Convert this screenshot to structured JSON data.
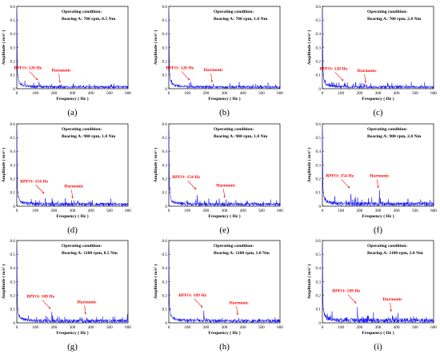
{
  "chart_data": [
    {
      "type": "line",
      "panel_label": "(a)",
      "condition_title": "Operating condition:",
      "condition_detail": "Bearing A: 700 rpm, 0.5 Nm",
      "xlabel": "Frequency ( Hz )",
      "ylabel": "Amplitude ( m/s² )",
      "xlim": [
        0,
        600
      ],
      "ylim": [
        0,
        0.6
      ],
      "xticks": [
        0,
        100,
        200,
        300,
        400,
        500,
        600
      ],
      "yticks": [
        0,
        0.1,
        0.2,
        0.3,
        0.4,
        0.5,
        0.6
      ],
      "noise_level": 0.012,
      "peaks": [
        {
          "x": 120,
          "y": 0.05
        },
        {
          "x": 240,
          "y": 0.032
        },
        {
          "x": 360,
          "y": 0.02
        }
      ],
      "annotations": [
        {
          "text": "BPFO: 120 Hz",
          "x": 120,
          "y": 0.05
        },
        {
          "text": "Harmonic",
          "x": 240,
          "y": 0.032
        }
      ],
      "line_color": "#0000ff",
      "annotation_color": "#ff0000"
    },
    {
      "type": "line",
      "panel_label": "(b)",
      "condition_title": "Operating condition:",
      "condition_detail": "Bearing A: 700 rpm, 1.0 Nm",
      "xlabel": "Frequency ( Hz )",
      "ylabel": "Amplitude ( m/s² )",
      "xlim": [
        0,
        600
      ],
      "ylim": [
        0,
        0.6
      ],
      "xticks": [
        0,
        100,
        200,
        300,
        400,
        500,
        600
      ],
      "yticks": [
        0,
        0.1,
        0.2,
        0.3,
        0.4,
        0.5,
        0.6
      ],
      "noise_level": 0.012,
      "peaks": [
        {
          "x": 120,
          "y": 0.05
        },
        {
          "x": 240,
          "y": 0.035
        },
        {
          "x": 480,
          "y": 0.025
        }
      ],
      "annotations": [
        {
          "text": "BPFO: 120 Hz",
          "x": 120,
          "y": 0.05
        },
        {
          "text": "Harmonic",
          "x": 240,
          "y": 0.035
        }
      ],
      "line_color": "#0000ff",
      "annotation_color": "#ff0000"
    },
    {
      "type": "line",
      "panel_label": "(c)",
      "condition_title": "Operating condition:",
      "condition_detail": "Bearing A: 700 rpm, 2.0 Nm",
      "xlabel": "Frequency ( Hz )",
      "ylabel": "Amplitude ( m/s² )",
      "xlim": [
        0,
        600
      ],
      "ylim": [
        0,
        0.6
      ],
      "xticks": [
        0,
        100,
        200,
        300,
        400,
        500,
        600
      ],
      "yticks": [
        0,
        0.1,
        0.2,
        0.3,
        0.4,
        0.5,
        0.6
      ],
      "noise_level": 0.012,
      "peaks": [
        {
          "x": 120,
          "y": 0.045
        },
        {
          "x": 240,
          "y": 0.03
        },
        {
          "x": 480,
          "y": 0.05
        }
      ],
      "annotations": [
        {
          "text": "BPFO: 120 Hz",
          "x": 120,
          "y": 0.045
        },
        {
          "text": "Harmonic",
          "x": 240,
          "y": 0.03
        }
      ],
      "line_color": "#0000ff",
      "annotation_color": "#ff0000"
    },
    {
      "type": "line",
      "panel_label": "(d)",
      "condition_title": "Operating condition:",
      "condition_detail": "Bearing A: 900 rpm, 1.0 Nm",
      "xlabel": "Frequency ( Hz )",
      "ylabel": "Amplitude ( m/s² )",
      "xlim": [
        0,
        600
      ],
      "ylim": [
        0,
        0.6
      ],
      "xticks": [
        0,
        100,
        200,
        300,
        400,
        500,
        600
      ],
      "yticks": [
        0,
        0.1,
        0.2,
        0.3,
        0.4,
        0.5,
        0.6
      ],
      "noise_level": 0.015,
      "peaks": [
        {
          "x": 154,
          "y": 0.08
        },
        {
          "x": 308,
          "y": 0.045
        },
        {
          "x": 462,
          "y": 0.03
        }
      ],
      "annotations": [
        {
          "text": "BPFO: 154 Hz",
          "x": 154,
          "y": 0.08
        },
        {
          "text": "Harmonic",
          "x": 308,
          "y": 0.045
        }
      ],
      "line_color": "#0000ff",
      "annotation_color": "#ff0000"
    },
    {
      "type": "line",
      "panel_label": "(e)",
      "condition_title": "Operating condition:",
      "condition_detail": "Bearing A: 900 rpm, 1.0 Nm",
      "xlabel": "Frequency ( Hz )",
      "ylabel": "Amplitude ( m/s² )",
      "xlim": [
        0,
        600
      ],
      "ylim": [
        0,
        0.6
      ],
      "xticks": [
        0,
        100,
        200,
        300,
        400,
        500,
        600
      ],
      "yticks": [
        0,
        0.1,
        0.2,
        0.3,
        0.4,
        0.5,
        0.6
      ],
      "noise_level": 0.015,
      "peaks": [
        {
          "x": 154,
          "y": 0.11
        },
        {
          "x": 308,
          "y": 0.05
        },
        {
          "x": 462,
          "y": 0.04
        }
      ],
      "annotations": [
        {
          "text": "BPFO: 154 Hz",
          "x": 154,
          "y": 0.11
        },
        {
          "text": "Harmonic",
          "x": 308,
          "y": 0.05
        }
      ],
      "line_color": "#0000ff",
      "annotation_color": "#ff0000"
    },
    {
      "type": "line",
      "panel_label": "(f)",
      "condition_title": "Operating condition:",
      "condition_detail": "Bearing A: 900 rpm, 2.0 Nm",
      "xlabel": "Frequency ( Hz )",
      "ylabel": "Amplitude ( m/s² )",
      "xlim": [
        0,
        600
      ],
      "ylim": [
        0,
        0.6
      ],
      "xticks": [
        0,
        100,
        200,
        300,
        400,
        500,
        600
      ],
      "yticks": [
        0,
        0.1,
        0.2,
        0.3,
        0.4,
        0.5,
        0.6
      ],
      "noise_level": 0.018,
      "peaks": [
        {
          "x": 154,
          "y": 0.12
        },
        {
          "x": 308,
          "y": 0.12
        },
        {
          "x": 462,
          "y": 0.07
        },
        {
          "x": 530,
          "y": 0.06
        }
      ],
      "annotations": [
        {
          "text": "BPFO: 154 Hz",
          "x": 154,
          "y": 0.12
        },
        {
          "text": "Harmonic",
          "x": 308,
          "y": 0.12
        }
      ],
      "line_color": "#0000ff",
      "annotation_color": "#ff0000"
    },
    {
      "type": "line",
      "panel_label": "(g)",
      "condition_title": "Operating condition:",
      "condition_detail": "Bearing A: 1100 rpm, 0.5 Nm",
      "xlabel": "Frequency ( Hz )",
      "ylabel": "Amplitude ( m/s² )",
      "xlim": [
        0,
        600
      ],
      "ylim": [
        0,
        0.6
      ],
      "xticks": [
        0,
        100,
        200,
        300,
        400,
        500,
        600
      ],
      "yticks": [
        0,
        0.1,
        0.2,
        0.3,
        0.4,
        0.5,
        0.6
      ],
      "noise_level": 0.015,
      "peaks": [
        {
          "x": 189,
          "y": 0.09
        },
        {
          "x": 378,
          "y": 0.05
        }
      ],
      "annotations": [
        {
          "text": "BPFO: 189 Hz",
          "x": 189,
          "y": 0.09
        },
        {
          "text": "Harmonic",
          "x": 378,
          "y": 0.05
        }
      ],
      "line_color": "#0000ff",
      "annotation_color": "#ff0000"
    },
    {
      "type": "line",
      "panel_label": "(h)",
      "condition_title": "Operating condition:",
      "condition_detail": "Bearing A: 1100 rpm, 1.0 Nm",
      "xlabel": "Frequency ( Hz )",
      "ylabel": "Amplitude ( m/s² )",
      "xlim": [
        0,
        600
      ],
      "ylim": [
        0,
        0.6
      ],
      "xticks": [
        0,
        100,
        200,
        300,
        400,
        500,
        600
      ],
      "yticks": [
        0,
        0.1,
        0.2,
        0.3,
        0.4,
        0.5,
        0.6
      ],
      "noise_level": 0.015,
      "peaks": [
        {
          "x": 189,
          "y": 0.1
        },
        {
          "x": 378,
          "y": 0.045
        }
      ],
      "annotations": [
        {
          "text": "BPFO: 189 Hz",
          "x": 189,
          "y": 0.1
        },
        {
          "text": "Harmonic",
          "x": 378,
          "y": 0.045
        }
      ],
      "line_color": "#0000ff",
      "annotation_color": "#ff0000"
    },
    {
      "type": "line",
      "panel_label": "(i)",
      "condition_title": "Operating condition:",
      "condition_detail": "Bearing A: 1100 rpm, 2.0 Nm",
      "xlabel": "Frequency ( Hz )",
      "ylabel": "Amplitude ( m/s² )",
      "xlim": [
        0,
        600
      ],
      "ylim": [
        0,
        0.6
      ],
      "xticks": [
        0,
        100,
        200,
        300,
        400,
        500,
        600
      ],
      "yticks": [
        0,
        0.1,
        0.2,
        0.3,
        0.4,
        0.5,
        0.6
      ],
      "noise_level": 0.02,
      "peaks": [
        {
          "x": 189,
          "y": 0.13
        },
        {
          "x": 378,
          "y": 0.07
        },
        {
          "x": 560,
          "y": 0.05
        }
      ],
      "annotations": [
        {
          "text": "BPFO: 189 Hz",
          "x": 189,
          "y": 0.13
        },
        {
          "text": "Harmonic",
          "x": 378,
          "y": 0.07
        }
      ],
      "line_color": "#0000ff",
      "annotation_color": "#ff0000"
    }
  ]
}
